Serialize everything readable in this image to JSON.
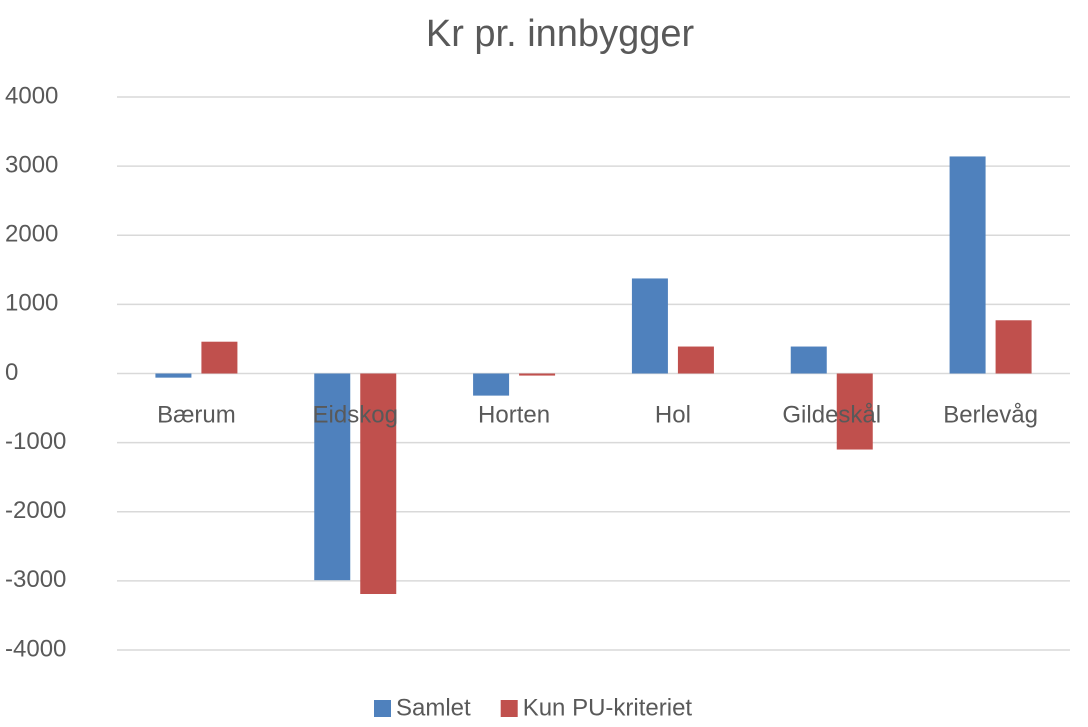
{
  "chart_data": {
    "type": "bar",
    "title": "Kr pr. innbygger",
    "categories": [
      "Bærum",
      "Eidskog",
      "Horten",
      "Hol",
      "Gildeskål",
      "Berlevåg"
    ],
    "series": [
      {
        "name": "Samlet",
        "color": "#4f81bd",
        "values": [
          -60,
          -2990,
          -320,
          1375,
          390,
          3140
        ]
      },
      {
        "name": "Kun PU-kriteriet",
        "color": "#c0504d",
        "values": [
          460,
          -3190,
          -30,
          390,
          -1100,
          770
        ]
      }
    ],
    "ylim": [
      -4000,
      4000
    ],
    "yticks": [
      -4000,
      -3000,
      -2000,
      -1000,
      0,
      1000,
      2000,
      3000,
      4000
    ],
    "grid": true,
    "legend": "bottom"
  }
}
